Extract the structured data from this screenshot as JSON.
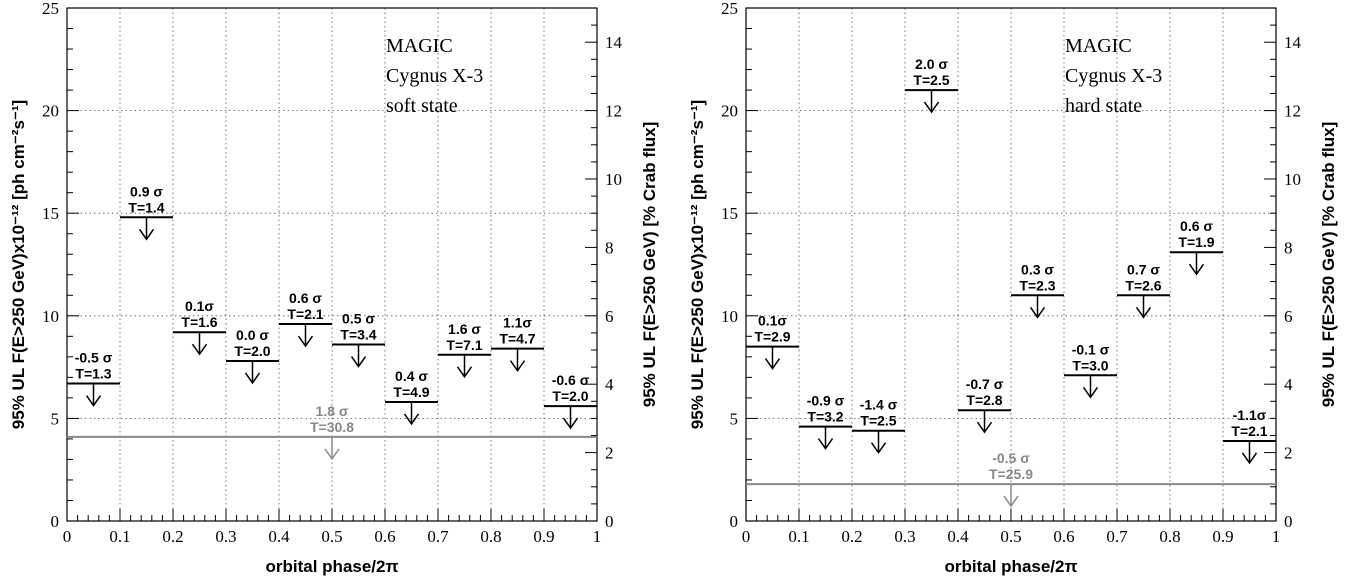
{
  "chart_data": [
    {
      "type": "upper-limits",
      "ylabel": "95% UL F(E>250 GeV)x10⁻¹² [ph cm⁻²s⁻¹]",
      "ylabel2": "95% UL F(E>250 GeV) [% Crab flux]",
      "xlabel": "orbital phase/2π",
      "xlim": [
        0,
        1
      ],
      "ylim": [
        0,
        25
      ],
      "y2lim": [
        0,
        15
      ],
      "grid": true,
      "xticks": [
        "0",
        "0.1",
        "0.2",
        "0.3",
        "0.4",
        "0.5",
        "0.6",
        "0.7",
        "0.8",
        "0.9",
        "1"
      ],
      "yticks": [
        "0",
        "5",
        "10",
        "15",
        "20",
        "25"
      ],
      "y2ticks": [
        "0",
        "2",
        "4",
        "6",
        "8",
        "10",
        "12",
        "14"
      ],
      "annotation": [
        "MAGIC",
        "Cygnus X-3",
        "soft state"
      ],
      "bins": [
        {
          "x0": 0.0,
          "x1": 0.1,
          "ul": 6.7,
          "sigma": "-0.5 σ",
          "t": "T=1.3"
        },
        {
          "x0": 0.1,
          "x1": 0.2,
          "ul": 14.8,
          "sigma": "0.9 σ",
          "t": "T=1.4"
        },
        {
          "x0": 0.2,
          "x1": 0.3,
          "ul": 9.2,
          "sigma": "0.1σ",
          "t": "T=1.6"
        },
        {
          "x0": 0.3,
          "x1": 0.4,
          "ul": 7.8,
          "sigma": "0.0 σ",
          "t": "T=2.0"
        },
        {
          "x0": 0.4,
          "x1": 0.5,
          "ul": 9.6,
          "sigma": "0.6 σ",
          "t": "T=2.1"
        },
        {
          "x0": 0.5,
          "x1": 0.6,
          "ul": 8.6,
          "sigma": "0.5 σ",
          "t": "T=3.4"
        },
        {
          "x0": 0.6,
          "x1": 0.7,
          "ul": 5.8,
          "sigma": "0.4 σ",
          "t": "T=4.9"
        },
        {
          "x0": 0.7,
          "x1": 0.8,
          "ul": 8.1,
          "sigma": "1.6 σ",
          "t": "T=7.1"
        },
        {
          "x0": 0.8,
          "x1": 0.9,
          "ul": 8.4,
          "sigma": "1.1σ",
          "t": "T=4.7"
        },
        {
          "x0": 0.9,
          "x1": 1.0,
          "ul": 5.6,
          "sigma": "-0.6 σ",
          "t": "T=2.0"
        }
      ],
      "total": {
        "x0": 0.0,
        "x1": 1.0,
        "ul": 4.1,
        "sigma": "1.8 σ",
        "t": "T=30.8",
        "color": "#888888"
      }
    },
    {
      "type": "upper-limits",
      "ylabel": "95% UL F(E>250 GeV)x10⁻¹² [ph cm⁻²s⁻¹]",
      "ylabel2": "95% UL F(E>250 GeV) [% Crab flux]",
      "xlabel": "orbital phase/2π",
      "xlim": [
        0,
        1
      ],
      "ylim": [
        0,
        25
      ],
      "y2lim": [
        0,
        15
      ],
      "grid": true,
      "xticks": [
        "0",
        "0.1",
        "0.2",
        "0.3",
        "0.4",
        "0.5",
        "0.6",
        "0.7",
        "0.8",
        "0.9",
        "1"
      ],
      "yticks": [
        "0",
        "5",
        "10",
        "15",
        "20",
        "25"
      ],
      "y2ticks": [
        "0",
        "2",
        "4",
        "6",
        "8",
        "10",
        "12",
        "14"
      ],
      "annotation": [
        "MAGIC",
        "Cygnus X-3",
        "hard state"
      ],
      "bins": [
        {
          "x0": 0.0,
          "x1": 0.1,
          "ul": 8.5,
          "sigma": "0.1σ",
          "t": "T=2.9"
        },
        {
          "x0": 0.1,
          "x1": 0.2,
          "ul": 4.6,
          "sigma": "-0.9 σ",
          "t": "T=3.2"
        },
        {
          "x0": 0.2,
          "x1": 0.3,
          "ul": 4.4,
          "sigma": "-1.4 σ",
          "t": "T=2.5"
        },
        {
          "x0": 0.3,
          "x1": 0.4,
          "ul": 21.0,
          "sigma": "2.0 σ",
          "t": "T=2.5"
        },
        {
          "x0": 0.4,
          "x1": 0.5,
          "ul": 5.4,
          "sigma": "-0.7 σ",
          "t": "T=2.8"
        },
        {
          "x0": 0.5,
          "x1": 0.6,
          "ul": 11.0,
          "sigma": "0.3 σ",
          "t": "T=2.3"
        },
        {
          "x0": 0.6,
          "x1": 0.7,
          "ul": 7.1,
          "sigma": "-0.1 σ",
          "t": "T=3.0"
        },
        {
          "x0": 0.7,
          "x1": 0.8,
          "ul": 11.0,
          "sigma": "0.7 σ",
          "t": "T=2.6"
        },
        {
          "x0": 0.8,
          "x1": 0.9,
          "ul": 13.1,
          "sigma": "0.6 σ",
          "t": "T=1.9"
        },
        {
          "x0": 0.9,
          "x1": 1.0,
          "ul": 3.9,
          "sigma": "-1.1σ",
          "t": "T=2.1"
        }
      ],
      "total": {
        "x0": 0.0,
        "x1": 1.0,
        "ul": 1.8,
        "sigma": "-0.5 σ",
        "t": "T=25.9",
        "color": "#888888"
      }
    }
  ]
}
